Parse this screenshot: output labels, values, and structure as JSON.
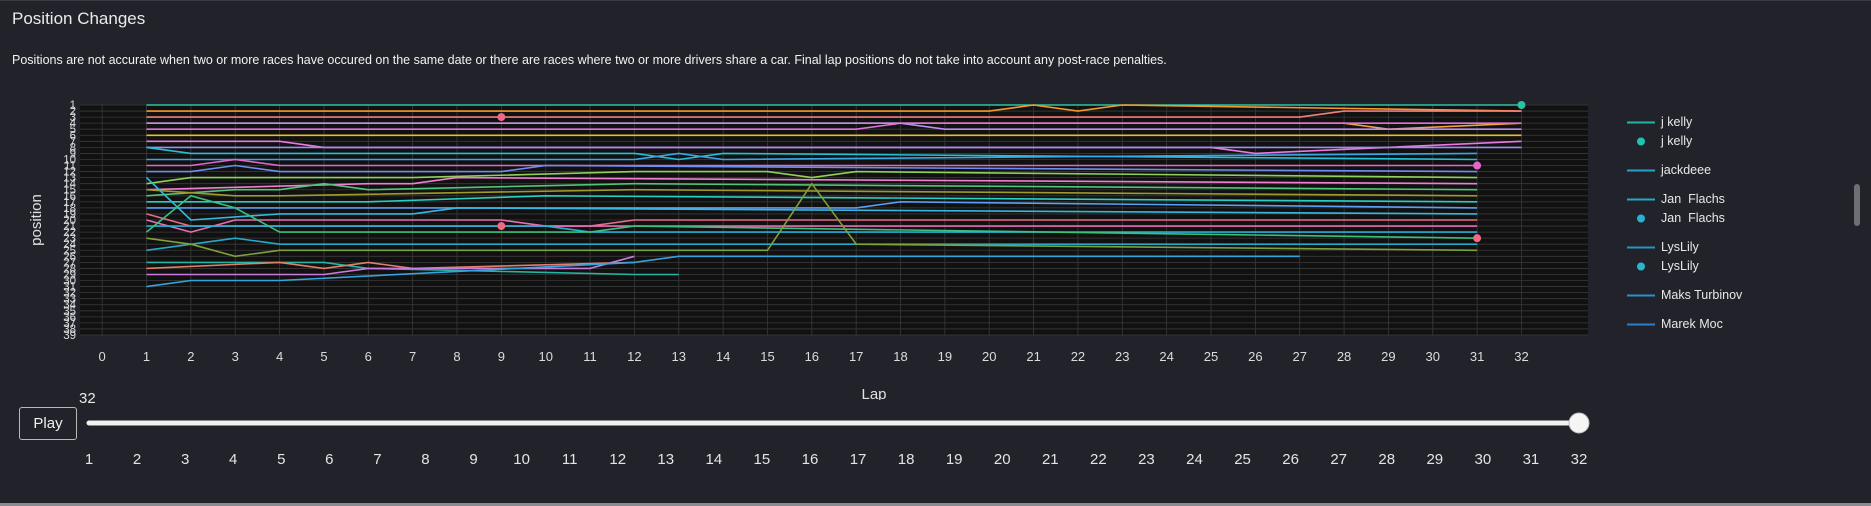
{
  "header": {
    "title": "Position Changes",
    "note": "Positions are not accurate when two or more races have occured on the same date or there are races where two or more drivers share a car. Final lap positions do not take into account any post-race penalties."
  },
  "controls": {
    "play_label": "Play",
    "current_frame": "32"
  },
  "slider": {
    "min": 1,
    "max": 32,
    "value": 32,
    "ticks": [
      "1",
      "2",
      "3",
      "4",
      "5",
      "6",
      "7",
      "8",
      "9",
      "10",
      "11",
      "12",
      "13",
      "14",
      "15",
      "16",
      "17",
      "18",
      "19",
      "20",
      "21",
      "22",
      "23",
      "24",
      "25",
      "26",
      "27",
      "28",
      "29",
      "30",
      "31",
      "32"
    ]
  },
  "legend": [
    {
      "label": "j kelly",
      "symbol": "line",
      "color": "#22b3a5"
    },
    {
      "label": "j kelly",
      "symbol": "dot",
      "color": "#22c2b0"
    },
    {
      "label": "jackdeee",
      "symbol": "line",
      "color": "#2a9fc9"
    },
    {
      "label": "Jan  Flachs",
      "symbol": "line",
      "color": "#27a6c7"
    },
    {
      "label": "Jan  Flachs",
      "symbol": "dot",
      "color": "#27b1d4"
    },
    {
      "label": "LysLily",
      "symbol": "line",
      "color": "#2596c4"
    },
    {
      "label": "LysLily",
      "symbol": "dot",
      "color": "#27b7cf"
    },
    {
      "label": "Maks Turbinov",
      "symbol": "line",
      "color": "#2b8fcf"
    },
    {
      "label": "Marek Moc",
      "symbol": "line",
      "color": "#2b7ed0"
    }
  ],
  "chart_data": {
    "type": "line",
    "title": "",
    "xlabel": "Lap",
    "ylabel": "position",
    "xlim": [
      -0.5,
      33.5
    ],
    "ylim": [
      39,
      1
    ],
    "y_reversed": true,
    "grid": true,
    "x_ticks": [
      "0",
      "1",
      "2",
      "3",
      "4",
      "5",
      "6",
      "7",
      "8",
      "9",
      "10",
      "11",
      "12",
      "13",
      "14",
      "15",
      "16",
      "17",
      "18",
      "19",
      "20",
      "21",
      "22",
      "23",
      "24",
      "25",
      "26",
      "27",
      "28",
      "29",
      "30",
      "31",
      "32"
    ],
    "y_ticks": [
      "1",
      "2",
      "3",
      "4",
      "5",
      "6",
      "7",
      "8",
      "9",
      "10",
      "11",
      "12",
      "13",
      "14",
      "15",
      "16",
      "17",
      "18",
      "19",
      "20",
      "21",
      "22",
      "23",
      "24",
      "25",
      "26",
      "27",
      "28",
      "29",
      "30",
      "31",
      "32",
      "33",
      "34",
      "35",
      "36",
      "37",
      "38",
      "39"
    ],
    "series": [
      {
        "color": "#29c3a2",
        "x": [
          1,
          19,
          20,
          21,
          22,
          23,
          32
        ],
        "y": [
          1,
          1,
          1,
          1,
          1,
          1,
          1
        ]
      },
      {
        "color": "#f59a2a",
        "x": [
          1,
          20,
          21,
          22,
          23,
          32
        ],
        "y": [
          2,
          2,
          1,
          2,
          1,
          2
        ]
      },
      {
        "color": "#f47f7a",
        "x": [
          1,
          27,
          28,
          32
        ],
        "y": [
          3,
          3,
          2,
          2
        ]
      },
      {
        "color": "#f2a33a",
        "x": [
          1,
          28,
          29,
          32
        ],
        "y": [
          4,
          4,
          5,
          4
        ]
      },
      {
        "color": "#e36fe0",
        "x": [
          1,
          17,
          18,
          19,
          32
        ],
        "y": [
          5,
          5,
          4,
          4,
          4
        ]
      },
      {
        "color": "#b98ef2",
        "x": [
          1,
          18,
          19,
          32
        ],
        "y": [
          4,
          4,
          5,
          5
        ]
      },
      {
        "color": "#e4bf30",
        "x": [
          1,
          17,
          32
        ],
        "y": [
          6,
          6,
          6
        ]
      },
      {
        "color": "#eb79e0",
        "x": [
          1,
          4,
          5,
          12,
          25,
          26,
          32
        ],
        "y": [
          7,
          7,
          8,
          8,
          8,
          9,
          7
        ]
      },
      {
        "color": "#9b8ff7",
        "x": [
          1,
          11,
          12,
          26,
          27,
          32
        ],
        "y": [
          8,
          8,
          8,
          8,
          8,
          8
        ]
      },
      {
        "color": "#23c0d9",
        "x": [
          1,
          2,
          12,
          13,
          14,
          31
        ],
        "y": [
          8,
          9,
          9,
          10,
          9,
          10
        ]
      },
      {
        "color": "#3aa6e8",
        "x": [
          1,
          12,
          13,
          14,
          31
        ],
        "y": [
          10,
          10,
          9,
          10,
          9
        ]
      },
      {
        "color": "#e466c9",
        "x": [
          1,
          2,
          3,
          4,
          31
        ],
        "y": [
          11,
          11,
          10,
          11,
          11
        ]
      },
      {
        "color": "#6c8ef0",
        "x": [
          1,
          2,
          3,
          4,
          9,
          10,
          31
        ],
        "y": [
          12,
          12,
          11,
          12,
          12,
          11,
          12
        ]
      },
      {
        "color": "#8fd05a",
        "x": [
          1,
          2,
          7,
          12,
          15,
          16,
          17,
          31
        ],
        "y": [
          14,
          13,
          13,
          12,
          12,
          13,
          12,
          13
        ]
      },
      {
        "color": "#f07fd1",
        "x": [
          1,
          6,
          7,
          8,
          31
        ],
        "y": [
          15,
          14,
          14,
          13,
          14
        ]
      },
      {
        "color": "#52c47b",
        "x": [
          1,
          3,
          4,
          5,
          6,
          12,
          31
        ],
        "y": [
          16,
          15,
          15,
          14,
          15,
          14,
          15
        ]
      },
      {
        "color": "#9f9a2c",
        "x": [
          1,
          3,
          4,
          12,
          31
        ],
        "y": [
          15,
          16,
          16,
          15,
          16
        ]
      },
      {
        "color": "#27d0c2",
        "x": [
          1,
          3,
          6,
          10,
          31
        ],
        "y": [
          17,
          17,
          17,
          16,
          17
        ]
      },
      {
        "color": "#5aa0f5",
        "x": [
          1,
          2,
          4,
          17,
          18,
          31
        ],
        "y": [
          18,
          18,
          18,
          18,
          17,
          18
        ]
      },
      {
        "color": "#35b7e0",
        "x": [
          1,
          2,
          4,
          7,
          8,
          31
        ],
        "y": [
          13,
          20,
          19,
          19,
          18,
          19
        ]
      },
      {
        "color": "#ea6b8a",
        "x": [
          1,
          2,
          11,
          12,
          31
        ],
        "y": [
          19,
          21,
          21,
          20,
          20
        ]
      },
      {
        "color": "#e86db6",
        "x": [
          1,
          2,
          3,
          9,
          10,
          31
        ],
        "y": [
          20,
          22,
          20,
          20,
          21,
          21
        ]
      },
      {
        "color": "#27b1d4",
        "x": [
          1,
          4,
          10,
          11,
          31
        ],
        "y": [
          21,
          21,
          21,
          22,
          22
        ]
      },
      {
        "color": "#38c27e",
        "x": [
          1,
          2,
          3,
          4,
          11,
          12,
          31
        ],
        "y": [
          22,
          16,
          18,
          22,
          22,
          21,
          23
        ]
      },
      {
        "color": "#25a9c9",
        "x": [
          1,
          3,
          4,
          31
        ],
        "y": [
          25,
          23,
          24,
          24
        ]
      },
      {
        "color": "#7ea13a",
        "x": [
          1,
          2,
          3,
          4,
          15,
          16,
          17,
          31
        ],
        "y": [
          23,
          24,
          26,
          25,
          25,
          14,
          24,
          25
        ]
      },
      {
        "color": "#22b6a3",
        "x": [
          1,
          5,
          6,
          12,
          13
        ],
        "y": [
          27,
          27,
          28,
          29,
          29
        ]
      },
      {
        "color": "#e07f6a",
        "x": [
          1,
          4,
          5,
          6,
          7,
          12
        ],
        "y": [
          28,
          27,
          28,
          27,
          28,
          27
        ]
      },
      {
        "color": "#c97be0",
        "x": [
          1,
          3,
          5,
          6,
          11,
          12
        ],
        "y": [
          29,
          29,
          29,
          28,
          28,
          26
        ]
      },
      {
        "color": "#35a3de",
        "x": [
          1,
          2,
          4,
          12,
          13,
          27
        ],
        "y": [
          31,
          30,
          30,
          27,
          26,
          26
        ]
      }
    ],
    "markers": [
      {
        "x": 9,
        "y": 3,
        "color": "#f06a85"
      },
      {
        "x": 9,
        "y": 21,
        "color": "#f06a85"
      },
      {
        "x": 31,
        "y": 11,
        "color": "#e466c9"
      },
      {
        "x": 31,
        "y": 23,
        "color": "#f06a85"
      },
      {
        "x": 32,
        "y": 1,
        "color": "#29c3a2"
      }
    ]
  }
}
